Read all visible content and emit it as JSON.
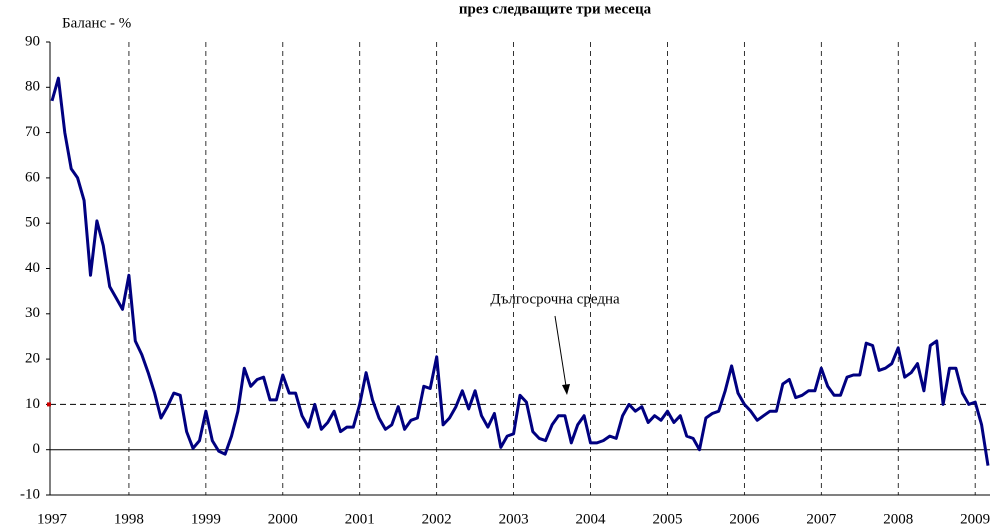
{
  "chart_data": {
    "type": "line",
    "title": "през следващите три месеца",
    "y_label": "Баланс - %",
    "annotation": "Дългосрочна средна",
    "long_term_mean": 10,
    "categories": [
      "1997",
      null,
      null,
      null,
      null,
      null,
      null,
      null,
      null,
      null,
      null,
      null,
      "1998",
      null,
      null,
      null,
      null,
      null,
      null,
      null,
      null,
      null,
      null,
      null,
      "1999",
      null,
      null,
      null,
      null,
      null,
      null,
      null,
      null,
      null,
      null,
      null,
      "2000",
      null,
      null,
      null,
      null,
      null,
      null,
      null,
      null,
      null,
      null,
      null,
      "2001",
      null,
      null,
      null,
      null,
      null,
      null,
      null,
      null,
      null,
      null,
      null,
      "2002",
      null,
      null,
      null,
      null,
      null,
      null,
      null,
      null,
      null,
      null,
      null,
      "2003",
      null,
      null,
      null,
      null,
      null,
      null,
      null,
      null,
      null,
      null,
      null,
      "2004",
      null,
      null,
      null,
      null,
      null,
      null,
      null,
      null,
      null,
      null,
      null,
      "2005",
      null,
      null,
      null,
      null,
      null,
      null,
      null,
      null,
      null,
      null,
      null,
      "2006",
      null,
      null,
      null,
      null,
      null,
      null,
      null,
      null,
      null,
      null,
      null,
      "2007",
      null,
      null,
      null,
      null,
      null,
      null,
      null,
      null,
      null,
      null,
      null,
      "2008",
      null,
      null,
      null,
      null,
      null,
      null,
      null,
      null,
      null,
      null,
      null,
      "2009",
      null,
      null
    ],
    "series": [
      {
        "color": "#000080",
        "values": [
          77,
          82,
          70,
          62,
          60,
          55,
          38.5,
          50.5,
          45,
          36,
          33.5,
          31,
          38.5,
          24,
          21,
          17,
          12.5,
          7,
          9.5,
          12.5,
          12,
          4,
          0.3,
          2,
          8.5,
          2,
          -0.3,
          -1,
          3,
          8.5,
          18,
          14,
          15.5,
          16,
          11,
          11,
          16.5,
          12.5,
          12.5,
          7.5,
          5,
          10,
          4.5,
          6,
          8.5,
          4,
          5,
          5,
          10,
          17,
          11,
          7,
          4.5,
          5.5,
          9.5,
          4.5,
          6.5,
          7,
          14,
          13.5,
          20.5,
          5.5,
          7,
          9.5,
          13,
          9,
          13,
          7.5,
          5,
          8,
          0.5,
          3,
          3.5,
          12,
          10.5,
          4,
          2.5,
          2,
          5.5,
          7.5,
          7.5,
          1.5,
          5.5,
          7.5,
          1.5,
          1.5,
          2,
          3,
          2.5,
          7.5,
          10,
          8.5,
          9.5,
          6,
          7.5,
          6.5,
          8.5,
          6,
          7.5,
          3,
          2.5,
          0,
          7,
          8,
          8.5,
          13,
          18.5,
          12.5,
          10,
          8.5,
          6.5,
          7.5,
          8.5,
          8.5,
          14.5,
          15.5,
          11.5,
          12,
          13,
          13,
          18,
          14,
          12,
          12,
          16,
          16.5,
          16.5,
          23.5,
          23,
          17.5,
          18,
          19,
          22.5,
          16,
          17,
          19,
          13,
          23,
          24,
          10,
          18,
          18,
          12.5,
          10,
          10.5,
          5.5,
          -3.5
        ]
      }
    ],
    "ylim": [
      -10,
      90
    ],
    "yticks": [
      -10,
      0,
      10,
      20,
      30,
      40,
      50,
      60,
      70,
      80,
      90
    ]
  }
}
